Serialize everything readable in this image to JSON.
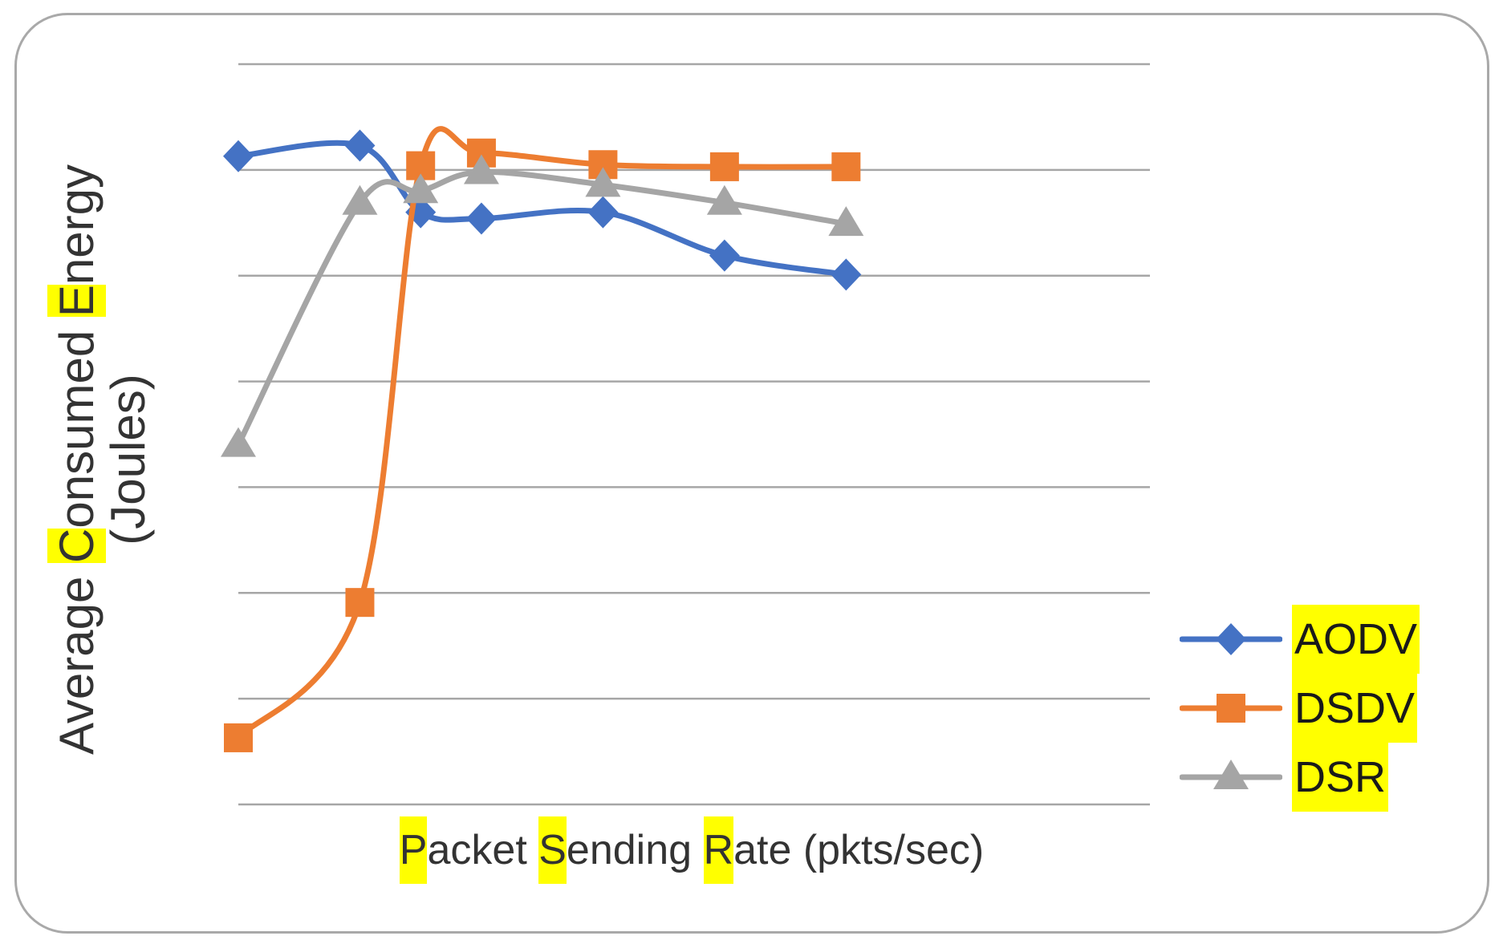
{
  "chart_data": {
    "type": "line",
    "xlabel": "Packet Sending Rate (pkts/sec)",
    "ylabel": "Average Consumed Energy (Joules)",
    "xlabel_highlight_chars": [
      0,
      7,
      15
    ],
    "ylabel_highlight_chars": [
      8,
      17
    ],
    "highlight_color": "#FFFF00",
    "xlim": [
      0,
      7.5
    ],
    "ylim": [
      0,
      7
    ],
    "grid": true,
    "smooth": true,
    "legend": "right",
    "series": [
      {
        "name": "AODV",
        "color": "#4472C4",
        "marker": "diamond",
        "x": [
          0,
          1,
          1.5,
          2,
          3,
          4,
          5
        ],
        "y": [
          6.13,
          6.23,
          5.6,
          5.54,
          5.6,
          5.19,
          5.01
        ]
      },
      {
        "name": "DSDV",
        "color": "#ED7D31",
        "marker": "square",
        "x": [
          0,
          1,
          1.5,
          2,
          3,
          4,
          5
        ],
        "y": [
          0.63,
          1.91,
          6.04,
          6.16,
          6.05,
          6.03,
          6.03
        ]
      },
      {
        "name": "DSR",
        "color": "#A5A5A5",
        "marker": "triangle",
        "x": [
          0,
          1,
          1.5,
          2,
          3,
          4,
          5
        ],
        "y": [
          3.4,
          5.69,
          5.8,
          5.98,
          5.86,
          5.69,
          5.49
        ]
      }
    ]
  }
}
